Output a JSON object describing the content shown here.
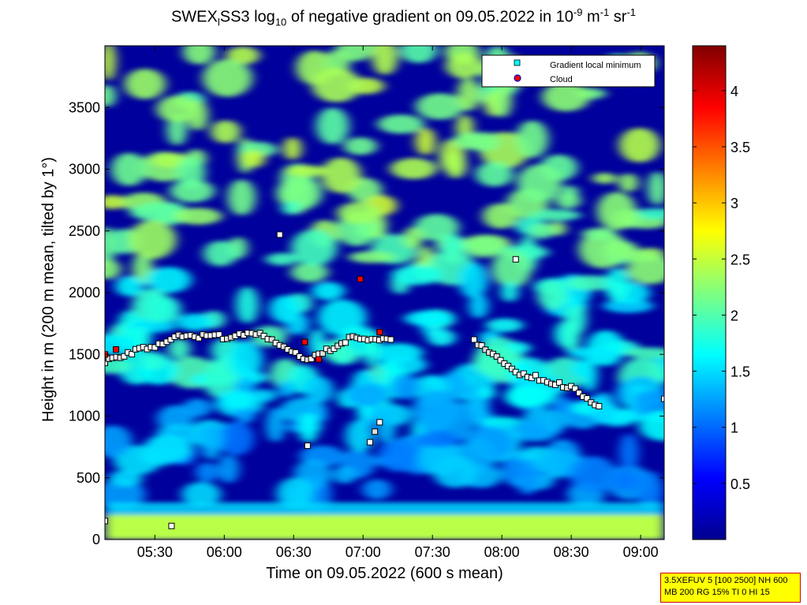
{
  "chart_data": {
    "type": "heatmap",
    "title": {
      "prefix": "SWEX",
      "sub": "l",
      "mid1": "SS3 log",
      "sub2": "10",
      "mid2": " of negative gradient on 09.05.2022 in 10",
      "sup1": "-9",
      "mid3": " m",
      "sup2": "-1",
      "mid4": " sr",
      "sup3": "-1"
    },
    "xlabel": "Time on 09.05.2022 (600 s mean)",
    "ylabel": "Height in m (200 m mean, tilted by 1°)",
    "x_ticks": [
      "05:30",
      "06:00",
      "06:30",
      "07:00",
      "07:30",
      "08:00",
      "08:30",
      "09:00"
    ],
    "x_tick_hours": [
      5.5,
      6.0,
      6.5,
      7.0,
      7.5,
      8.0,
      8.5,
      9.0
    ],
    "xlim_hours": [
      5.14,
      9.17
    ],
    "y_ticks": [
      0,
      500,
      1000,
      1500,
      2000,
      2500,
      3000,
      3500
    ],
    "ylim": [
      0,
      4000
    ],
    "colorbar": {
      "ticks": [
        "0.5",
        "1",
        "1.5",
        "2",
        "2.5",
        "3",
        "3.5",
        "4"
      ],
      "tick_values": [
        0.5,
        1,
        1.5,
        2,
        2.5,
        3,
        3.5,
        4
      ],
      "range": [
        0,
        4.4
      ],
      "colormap": "jet"
    },
    "legend": {
      "placement": "top-right",
      "entries": [
        {
          "label": "Gradient local minimum",
          "marker": "square",
          "color": "#00ffff"
        },
        {
          "label": "Cloud",
          "marker": "circle",
          "color": "#ff0000"
        }
      ]
    },
    "layers": [
      {
        "name": "base bands",
        "points": [
          [
            5.14,
            0.18,
            2.55
          ],
          [
            5.14,
            0.5,
            1.2
          ],
          [
            6.5,
            0.18,
            2.45
          ],
          [
            9.17,
            0.18,
            2.4
          ]
        ]
      },
      {
        "name": "gradient minima",
        "points": [
          [
            5.14,
            150
          ],
          [
            5.62,
            110
          ],
          [
            5.14,
            1450
          ],
          [
            5.5,
            1570
          ],
          [
            5.7,
            1650
          ],
          [
            6.05,
            1640
          ],
          [
            6.2,
            1690
          ],
          [
            6.6,
            1450
          ],
          [
            6.9,
            1630
          ],
          [
            7.2,
            1620
          ],
          [
            7.8,
            1600
          ],
          [
            8.1,
            1360
          ],
          [
            8.5,
            1230
          ],
          [
            8.7,
            1080
          ],
          [
            9.17,
            1140
          ],
          [
            6.6,
            760
          ],
          [
            7.05,
            800
          ],
          [
            7.12,
            950
          ],
          [
            6.4,
            2470
          ],
          [
            8.1,
            2270
          ]
        ]
      },
      {
        "name": "clouds",
        "points": [
          [
            5.14,
            1500
          ],
          [
            5.22,
            1540
          ],
          [
            6.58,
            1600
          ],
          [
            6.68,
            1460
          ],
          [
            6.98,
            2110
          ],
          [
            7.12,
            1680
          ]
        ]
      }
    ]
  },
  "info_box": {
    "line1": "3.5XEFUV 5 [100 2500] NH 600",
    "line2": "MB 200 RG 15% TI 0 HI 15"
  }
}
